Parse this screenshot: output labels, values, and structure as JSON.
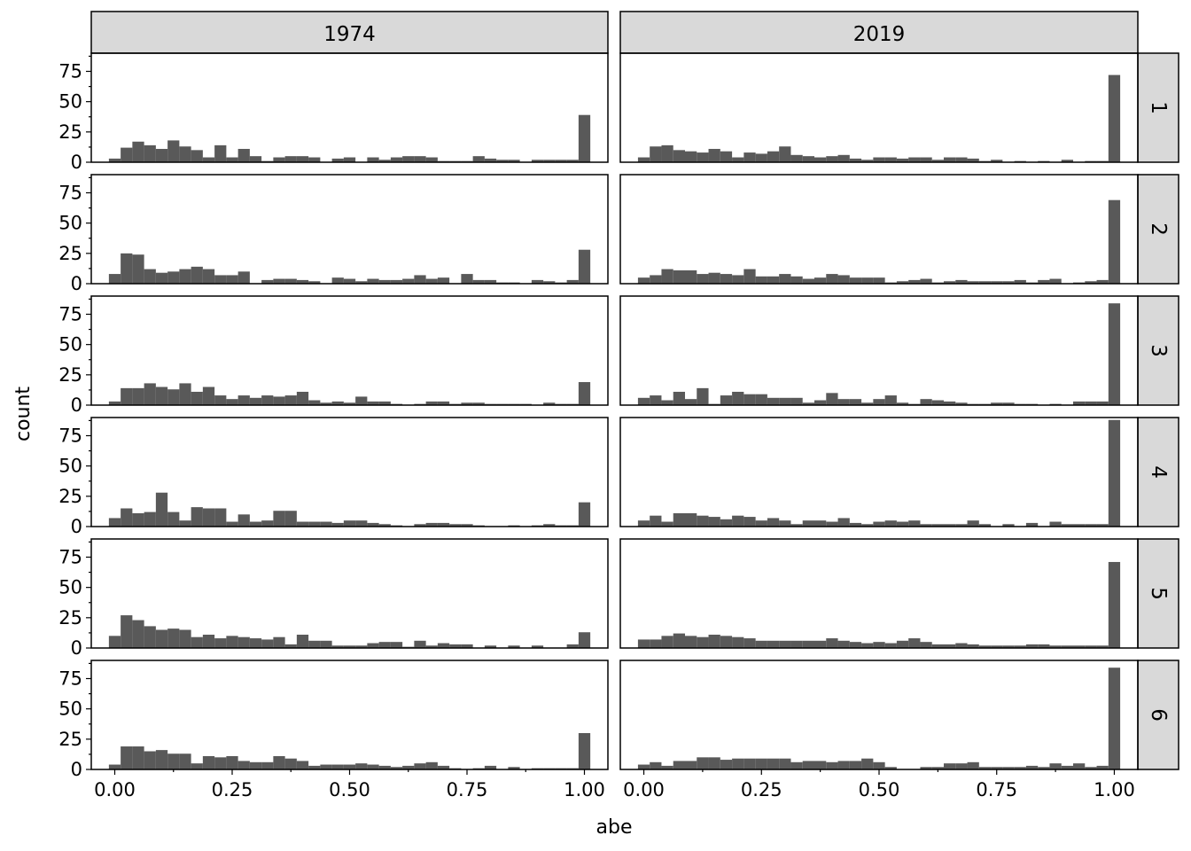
{
  "chart_data": {
    "type": "bar",
    "kind": "faceted histogram",
    "xlabel": "abe",
    "ylabel": "count",
    "col_facets": [
      "1974",
      "2019"
    ],
    "row_facets": [
      "1",
      "2",
      "3",
      "4",
      "5",
      "6"
    ],
    "xlim": [
      -0.05,
      1.05
    ],
    "ylim": [
      0,
      90
    ],
    "x_ticks": [
      0.0,
      0.25,
      0.5,
      0.75,
      1.0
    ],
    "x_tick_labels": [
      "0.00",
      "0.25",
      "0.50",
      "0.75",
      "1.00"
    ],
    "y_ticks": [
      0,
      25,
      50,
      75
    ],
    "y_tick_labels": [
      "0",
      "25",
      "50",
      "75"
    ],
    "y_minor_ticks": [
      12.5,
      37.5,
      62.5,
      87.5
    ],
    "bar_color": "#595959",
    "bin_width": 0.025,
    "bin_centers": [
      0.0,
      0.025,
      0.05,
      0.075,
      0.1,
      0.125,
      0.15,
      0.175,
      0.2,
      0.225,
      0.25,
      0.275,
      0.3,
      0.325,
      0.35,
      0.375,
      0.4,
      0.425,
      0.45,
      0.475,
      0.5,
      0.525,
      0.55,
      0.575,
      0.6,
      0.625,
      0.65,
      0.675,
      0.7,
      0.725,
      0.75,
      0.775,
      0.8,
      0.825,
      0.85,
      0.875,
      0.9,
      0.925,
      0.95,
      0.975,
      1.0
    ],
    "panels": [
      {
        "col": "1974",
        "row": "1",
        "counts": [
          3,
          12,
          17,
          14,
          11,
          18,
          13,
          10,
          4,
          14,
          4,
          11,
          5,
          1,
          4,
          5,
          5,
          4,
          0,
          3,
          4,
          0,
          4,
          2,
          4,
          5,
          5,
          4,
          1,
          1,
          1,
          5,
          3,
          2,
          2,
          0,
          2,
          2,
          2,
          2,
          39
        ]
      },
      {
        "col": "1974",
        "row": "2",
        "counts": [
          8,
          25,
          24,
          12,
          9,
          10,
          12,
          14,
          12,
          7,
          7,
          10,
          0,
          3,
          4,
          4,
          3,
          2,
          0,
          5,
          4,
          2,
          4,
          3,
          3,
          4,
          7,
          4,
          5,
          0,
          8,
          3,
          3,
          1,
          1,
          0,
          3,
          2,
          1,
          3,
          28
        ]
      },
      {
        "col": "1974",
        "row": "3",
        "counts": [
          3,
          14,
          14,
          18,
          15,
          13,
          18,
          11,
          15,
          8,
          5,
          8,
          6,
          8,
          7,
          8,
          11,
          4,
          2,
          3,
          2,
          7,
          3,
          3,
          1,
          0,
          1,
          3,
          3,
          1,
          2,
          2,
          1,
          1,
          1,
          1,
          0,
          2,
          1,
          1,
          19
        ]
      },
      {
        "col": "1974",
        "row": "4",
        "counts": [
          7,
          15,
          11,
          12,
          28,
          12,
          5,
          16,
          15,
          15,
          4,
          10,
          4,
          5,
          13,
          13,
          4,
          4,
          4,
          3,
          5,
          5,
          3,
          2,
          1,
          0,
          2,
          3,
          3,
          2,
          2,
          1,
          0,
          0,
          1,
          0,
          1,
          2,
          1,
          1,
          20
        ]
      },
      {
        "col": "1974",
        "row": "5",
        "counts": [
          10,
          27,
          23,
          18,
          15,
          16,
          15,
          9,
          11,
          8,
          10,
          9,
          8,
          7,
          9,
          3,
          11,
          6,
          6,
          2,
          2,
          2,
          4,
          5,
          5,
          1,
          6,
          2,
          4,
          3,
          3,
          0,
          2,
          0,
          2,
          0,
          2,
          0,
          0,
          3,
          13
        ]
      },
      {
        "col": "1974",
        "row": "6",
        "counts": [
          4,
          19,
          19,
          15,
          16,
          13,
          13,
          5,
          11,
          10,
          11,
          7,
          6,
          6,
          11,
          9,
          7,
          3,
          4,
          4,
          4,
          5,
          4,
          3,
          2,
          3,
          5,
          6,
          3,
          1,
          0,
          1,
          3,
          0,
          2,
          0,
          1,
          1,
          1,
          1,
          30
        ]
      },
      {
        "col": "2019",
        "row": "1",
        "counts": [
          4,
          13,
          14,
          10,
          9,
          8,
          11,
          9,
          4,
          8,
          7,
          9,
          13,
          6,
          5,
          4,
          5,
          6,
          3,
          2,
          4,
          4,
          3,
          4,
          4,
          2,
          4,
          4,
          3,
          1,
          2,
          0,
          1,
          0,
          1,
          0,
          2,
          0,
          1,
          1,
          72
        ]
      },
      {
        "col": "2019",
        "row": "2",
        "counts": [
          5,
          7,
          12,
          11,
          11,
          8,
          9,
          8,
          7,
          12,
          6,
          6,
          8,
          6,
          4,
          5,
          8,
          7,
          5,
          5,
          5,
          1,
          2,
          3,
          4,
          1,
          2,
          3,
          2,
          2,
          2,
          2,
          3,
          1,
          3,
          4,
          0,
          1,
          2,
          3,
          69
        ]
      },
      {
        "col": "2019",
        "row": "3",
        "counts": [
          6,
          8,
          4,
          11,
          5,
          14,
          1,
          8,
          11,
          9,
          9,
          6,
          6,
          6,
          2,
          4,
          10,
          5,
          5,
          2,
          5,
          8,
          2,
          1,
          5,
          4,
          3,
          2,
          1,
          1,
          2,
          2,
          1,
          1,
          0,
          1,
          0,
          3,
          3,
          3,
          84
        ]
      },
      {
        "col": "2019",
        "row": "4",
        "counts": [
          5,
          9,
          4,
          11,
          11,
          9,
          8,
          6,
          9,
          8,
          5,
          7,
          5,
          2,
          5,
          5,
          4,
          7,
          3,
          2,
          4,
          5,
          4,
          5,
          2,
          2,
          2,
          2,
          5,
          2,
          0,
          2,
          0,
          3,
          0,
          4,
          2,
          2,
          2,
          2,
          88
        ]
      },
      {
        "col": "2019",
        "row": "5",
        "counts": [
          7,
          7,
          10,
          12,
          10,
          9,
          11,
          10,
          9,
          8,
          6,
          6,
          6,
          6,
          6,
          6,
          8,
          6,
          5,
          4,
          5,
          4,
          6,
          8,
          5,
          3,
          3,
          4,
          3,
          2,
          2,
          2,
          2,
          3,
          3,
          2,
          2,
          2,
          2,
          2,
          71
        ]
      },
      {
        "col": "2019",
        "row": "6",
        "counts": [
          4,
          6,
          3,
          7,
          7,
          10,
          10,
          8,
          9,
          9,
          9,
          9,
          9,
          6,
          7,
          7,
          6,
          7,
          7,
          9,
          6,
          2,
          0,
          0,
          2,
          2,
          5,
          5,
          6,
          2,
          2,
          2,
          2,
          3,
          2,
          5,
          3,
          5,
          2,
          3,
          84
        ]
      }
    ]
  }
}
